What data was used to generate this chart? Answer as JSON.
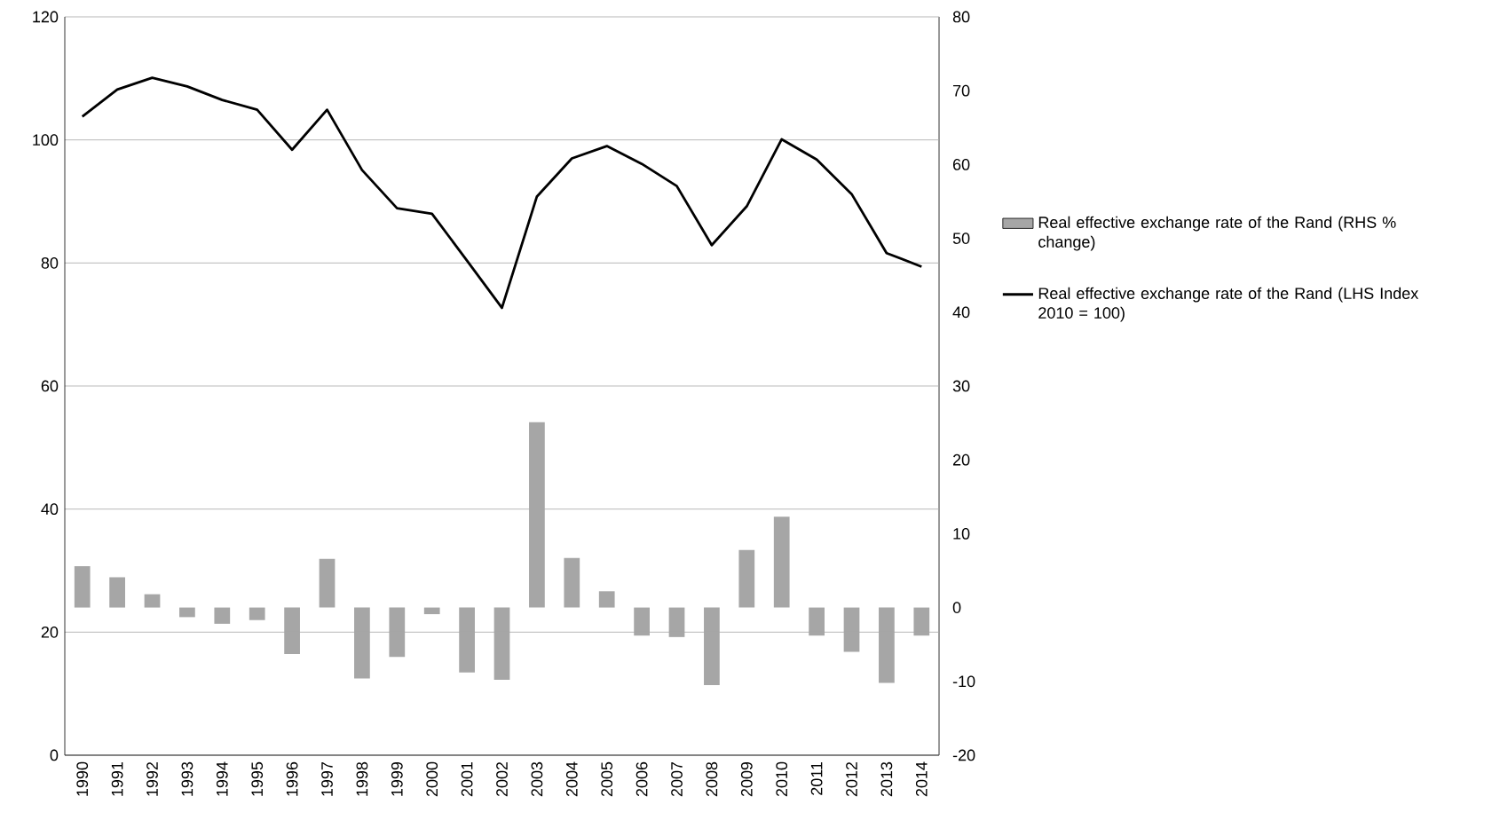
{
  "chart_data": {
    "type": "bar",
    "categories": [
      "1990",
      "1991",
      "1992",
      "1993",
      "1994",
      "1995",
      "1996",
      "1997",
      "1998",
      "1999",
      "2000",
      "2001",
      "2002",
      "2003",
      "2004",
      "2005",
      "2006",
      "2007",
      "2008",
      "2009",
      "2010",
      "2011",
      "2012",
      "2013",
      "2014"
    ],
    "series": [
      {
        "name": "Real effective exchange rate of the Rand (RHS % change)",
        "axis": "y2",
        "color": "#a6a6a6",
        "values": [
          5.6,
          4.1,
          1.8,
          -1.3,
          -2.2,
          -1.7,
          -6.3,
          6.6,
          -9.6,
          -6.7,
          -0.9,
          -8.8,
          -9.8,
          25.1,
          6.7,
          2.2,
          -3.8,
          -4.0,
          -10.5,
          7.8,
          12.3,
          -3.8,
          -6.0,
          -10.2,
          -3.8
        ]
      },
      {
        "name": "Real effective exchange rate of the Rand (LHS Index 2010 = 100)",
        "type": "line",
        "color": "#000000",
        "values": [
          103.8,
          108.2,
          110.1,
          108.7,
          106.5,
          104.9,
          98.4,
          104.9,
          95.1,
          88.9,
          88.0,
          80.4,
          72.7,
          90.8,
          97.0,
          99.0,
          96.1,
          92.5,
          82.9,
          89.2,
          100.1,
          96.8,
          91.2,
          81.6,
          79.4
        ]
      }
    ],
    "ylim": [
      0,
      120
    ],
    "yticks": [
      0,
      20,
      40,
      60,
      80,
      100,
      120
    ],
    "y2lim": [
      -20,
      80
    ],
    "y2ticks": [
      -20,
      -10,
      0,
      10,
      20,
      30,
      40,
      50,
      60,
      70,
      80
    ],
    "grid": "y",
    "legend": "right"
  }
}
